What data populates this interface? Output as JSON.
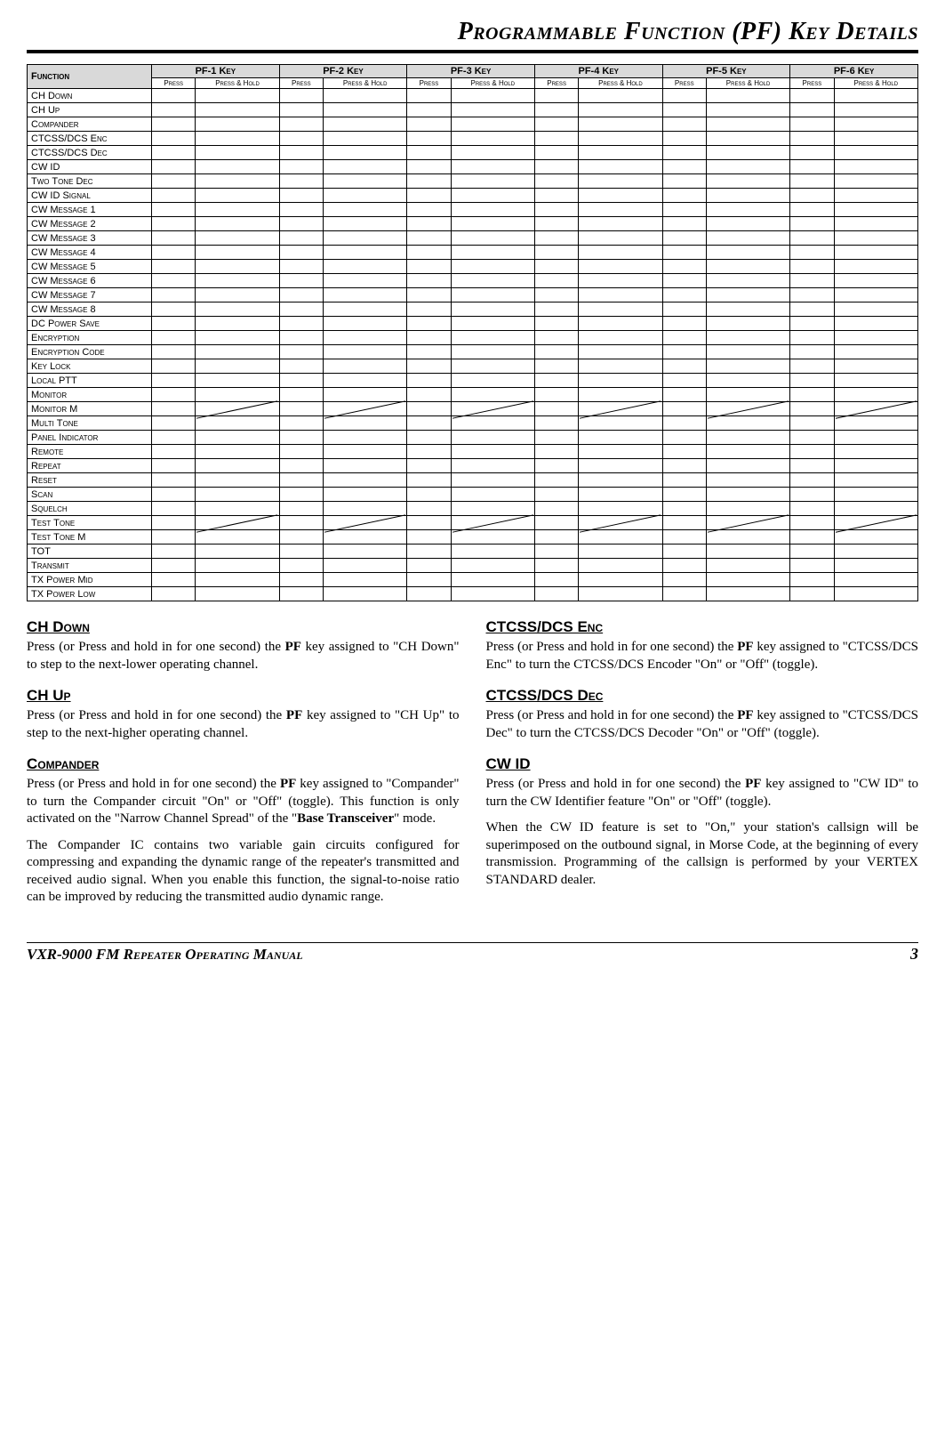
{
  "title": "Programmable Function (PF) Key Details",
  "table": {
    "func_header": "Function",
    "keys": [
      "PF-1  Key",
      "PF-2  Key",
      "PF-3  Key",
      "PF-4  Key",
      "PF-5  Key",
      "PF-6  Key"
    ],
    "sub_press": "Press",
    "sub_hold": "Press & Hold",
    "rows": [
      {
        "label": "CH Down",
        "slash": false
      },
      {
        "label": "CH Up",
        "slash": false
      },
      {
        "label": "Compander",
        "slash": false
      },
      {
        "label": "CTCSS/DCS Enc",
        "slash": false
      },
      {
        "label": "CTCSS/DCS Dec",
        "slash": false
      },
      {
        "label": "CW ID",
        "slash": false
      },
      {
        "label": "Two Tone Dec",
        "slash": false
      },
      {
        "label": "CW ID Signal",
        "slash": false
      },
      {
        "label": "CW Message 1",
        "slash": false
      },
      {
        "label": "CW Message 2",
        "slash": false
      },
      {
        "label": "CW Message 3",
        "slash": false
      },
      {
        "label": "CW Message 4",
        "slash": false
      },
      {
        "label": "CW Message 5",
        "slash": false
      },
      {
        "label": "CW Message 6",
        "slash": false
      },
      {
        "label": "CW Message 7",
        "slash": false
      },
      {
        "label": "CW Message 8",
        "slash": false
      },
      {
        "label": "DC Power Save",
        "slash": false
      },
      {
        "label": "Encryption",
        "slash": false
      },
      {
        "label": "Encryption Code",
        "slash": false
      },
      {
        "label": "Key Lock",
        "slash": false
      },
      {
        "label": "Local PTT",
        "slash": false
      },
      {
        "label": "Monitor",
        "slash": false
      },
      {
        "label": "Monitor M",
        "slash": true
      },
      {
        "label": "Multi Tone",
        "slash": false
      },
      {
        "label": "Panel Indicator",
        "slash": false
      },
      {
        "label": "Remote",
        "slash": false
      },
      {
        "label": "Repeat",
        "slash": false
      },
      {
        "label": "Reset",
        "slash": false
      },
      {
        "label": "Scan",
        "slash": false
      },
      {
        "label": "Squelch",
        "slash": false
      },
      {
        "label": "Test Tone",
        "slash": true
      },
      {
        "label": "Test Tone M",
        "slash": false
      },
      {
        "label": "TOT",
        "slash": false
      },
      {
        "label": "Transmit",
        "slash": false
      },
      {
        "label": "TX Power Mid",
        "slash": false
      },
      {
        "label": "TX Power Low",
        "slash": false
      }
    ]
  },
  "descriptions": {
    "left": [
      {
        "h": "CH Down",
        "p": [
          "Press (or Press and hold in for one second) the <b>PF</b> key assigned to \"CH Down\" to step to the next-lower operating channel."
        ]
      },
      {
        "h": "CH Up",
        "p": [
          "Press (or Press and hold in for one second) the <b>PF</b> key assigned to \"CH Up\" to step to the next-higher operating channel."
        ]
      },
      {
        "h": "Compander",
        "p": [
          "Press (or Press and hold in for one second) the <b>PF</b> key assigned to \"Compander\" to turn the Compander circuit \"On\" or \"Off\" (toggle). This function is only activated on the \"Narrow Channel Spread\" of the \"<b>Base Transceiver</b>\" mode.",
          "The Compander IC contains two variable gain circuits configured for compressing and expanding the dynamic range of the repeater's transmitted and received audio signal. When you enable this function, the signal-to-noise ratio can be improved by reducing the transmitted audio dynamic range."
        ]
      }
    ],
    "right": [
      {
        "h": "CTCSS/DCS Enc",
        "p": [
          "Press (or Press and hold in for one second) the <b>PF</b> key assigned to \"CTCSS/DCS Enc\" to turn the CTCSS/DCS Encoder \"On\" or \"Off\" (toggle)."
        ]
      },
      {
        "h": "CTCSS/DCS Dec",
        "p": [
          "Press (or Press and hold in for one second) the <b>PF</b> key assigned to \"CTCSS/DCS Dec\" to turn the CTCSS/DCS Decoder \"On\" or \"Off\" (toggle)."
        ]
      },
      {
        "h": "CW ID",
        "p": [
          "Press (or Press and hold in for one second) the <b>PF</b> key assigned to \"CW ID\" to turn the CW Identifier feature \"On\" or \"Off\" (toggle).",
          "When the CW ID feature is set to \"On,\" your station's callsign will be superimposed on the outbound signal, in Morse Code, at the beginning of every transmission. Programming of the callsign is performed by your VERTEX STANDARD dealer."
        ]
      }
    ]
  },
  "footer": {
    "manual": "VXR-9000 FM Repeater Operating Manual",
    "page": "3"
  }
}
